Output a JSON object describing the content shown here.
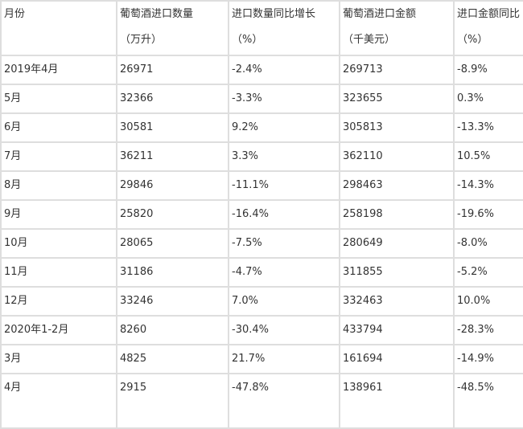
{
  "header": [
    {
      "line1": "月份",
      "line2": ""
    },
    {
      "line1": "葡萄酒进口数量",
      "line2": "（万升）"
    },
    {
      "line1": "进口数量同比增长",
      "line2": "（%）"
    },
    {
      "line1": "葡萄酒进口金额",
      "line2": "（千美元）"
    },
    {
      "line1": "进口金额同比",
      "line2": "（%）"
    }
  ],
  "rows": [
    [
      "2019年4月",
      "26971",
      "-2.4%",
      "269713",
      "-8.9%"
    ],
    [
      "5月",
      "32366",
      "-3.3%",
      "323655",
      "0.3%"
    ],
    [
      "6月",
      "30581",
      "9.2%",
      "305813",
      "-13.3%"
    ],
    [
      "7月",
      "36211",
      "3.3%",
      "362110",
      "10.5%"
    ],
    [
      "8月",
      "29846",
      "-11.1%",
      "298463",
      "-14.3%"
    ],
    [
      "9月",
      "25820",
      "-16.4%",
      "258198",
      "-19.6%"
    ],
    [
      "10月",
      "28065",
      "-7.5%",
      "280649",
      "-8.0%"
    ],
    [
      "11月",
      "31186",
      "-4.7%",
      "311855",
      "-5.2%"
    ],
    [
      "12月",
      "33246",
      "7.0%",
      "332463",
      "10.0%"
    ],
    [
      "2020年1-2月",
      "8260",
      "-30.4%",
      "433794",
      "-28.3%"
    ],
    [
      "3月",
      "4825",
      "21.7%",
      "161694",
      "-14.9%"
    ],
    [
      "4月",
      "2915",
      "-47.8%",
      "138961",
      "-48.5%"
    ]
  ]
}
